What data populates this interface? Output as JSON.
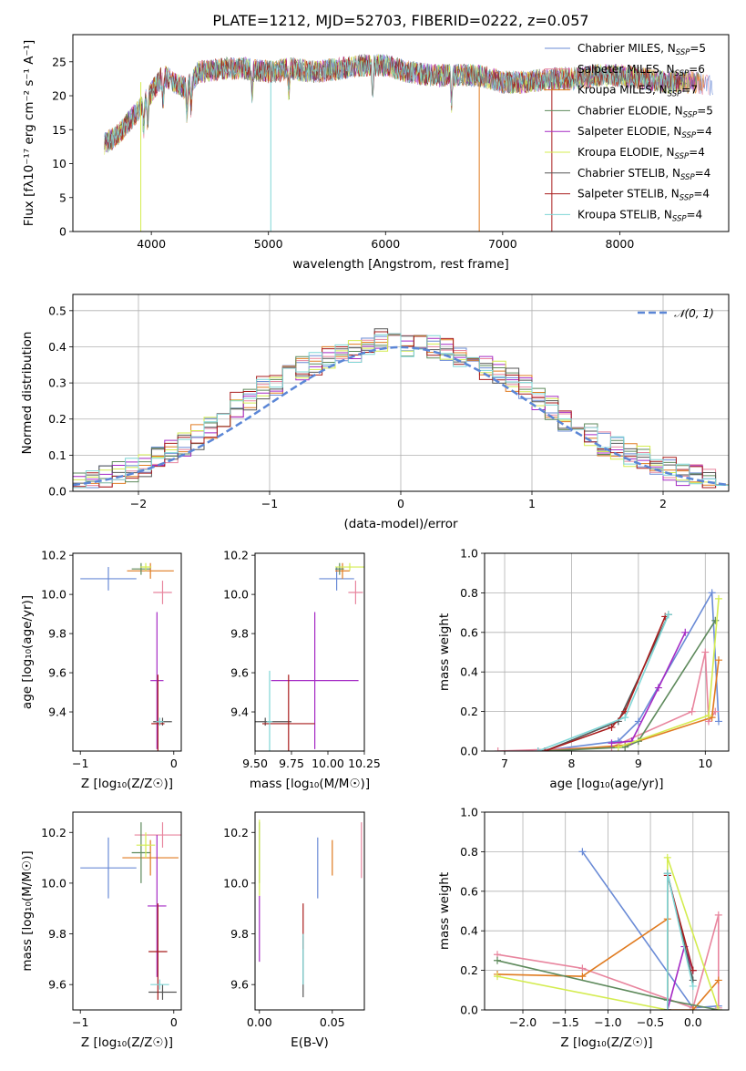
{
  "title": "PLATE=1212, MJD=52703, FIBERID=0222, z=0.057",
  "colors": {
    "Chabrier MILES": "#6a8bd6",
    "Salpeter MILES": "#e8859e",
    "Kroupa MILES": "#e07b20",
    "Chabrier ELODIE": "#5e8a5c",
    "Salpeter ELODIE": "#a52ac4",
    "Kroupa ELODIE": "#d4ec50",
    "Chabrier STELIB": "#555555",
    "Salpeter STELIB": "#a81c1c",
    "Kroupa STELIB": "#7fd6d6"
  },
  "chart_data": [
    {
      "id": "spectrum",
      "type": "line",
      "title": "PLATE=1212, MJD=52703, FIBERID=0222, z=0.057",
      "xlabel": "wavelength [Angstrom, rest frame]",
      "ylabel": "Flux [fλ10⁻¹⁷ erg cm⁻² s⁻¹ A⁻¹]",
      "xlim": [
        3330,
        8930
      ],
      "ylim": [
        0,
        29
      ],
      "xticks": [
        "4000",
        "5000",
        "6000",
        "7000",
        "8000"
      ],
      "yticks": [
        "0",
        "5",
        "10",
        "15",
        "20",
        "25"
      ],
      "legend_position": "top-right",
      "grid": false,
      "continuum": {
        "x": [
          3600,
          3700,
          3800,
          3900,
          4000,
          4100,
          4200,
          4300,
          4400,
          4600,
          4800,
          5000,
          5200,
          5400,
          5600,
          5800,
          6000,
          6200,
          6400,
          6600,
          6800,
          7000,
          7200,
          7400,
          7600,
          7800,
          8000,
          8200,
          8400,
          8600,
          8800
        ],
        "y": [
          13,
          14,
          16,
          18,
          20.5,
          23,
          22,
          21,
          23.5,
          24,
          24,
          23.5,
          24,
          23.5,
          24,
          24.5,
          24.5,
          23.5,
          23,
          23,
          23,
          22,
          22,
          22.5,
          22.5,
          23,
          23,
          22.5,
          22,
          22,
          21.5
        ]
      },
      "series": [
        {
          "name": "Chabrier MILES",
          "label": "Chabrier MILES, N",
          "sub": "SSP",
          "count": "=5"
        },
        {
          "name": "Salpeter MILES",
          "label": "Salpeter MILES, N",
          "sub": "SSP",
          "count": "=6"
        },
        {
          "name": "Kroupa MILES",
          "label": "Kroupa MILES, N",
          "sub": "SSP",
          "count": "=7"
        },
        {
          "name": "Chabrier ELODIE",
          "label": "Chabrier ELODIE, N",
          "sub": "SSP",
          "count": "=5"
        },
        {
          "name": "Salpeter ELODIE",
          "label": "Salpeter ELODIE, N",
          "sub": "SSP",
          "count": "=4"
        },
        {
          "name": "Kroupa ELODIE",
          "label": "Kroupa ELODIE, N",
          "sub": "SSP",
          "count": "=4"
        },
        {
          "name": "Chabrier STELIB",
          "label": "Chabrier STELIB, N",
          "sub": "SSP",
          "count": "=4"
        },
        {
          "name": "Salpeter STELIB",
          "label": "Salpeter STELIB, N",
          "sub": "SSP",
          "count": "=4"
        },
        {
          "name": "Kroupa STELIB",
          "label": "Kroupa STELIB, N",
          "sub": "SSP",
          "count": "=4"
        }
      ]
    },
    {
      "id": "residuals",
      "type": "bar",
      "xlabel": "(data-model)/error",
      "ylabel": "Normed distribution",
      "xlim": [
        -2.5,
        2.5
      ],
      "ylim": [
        0,
        0.545
      ],
      "xticks": [
        "−2",
        "−1",
        "0",
        "1",
        "2"
      ],
      "yticks": [
        "0.0",
        "0.1",
        "0.2",
        "0.3",
        "0.4",
        "0.5"
      ],
      "grid": true,
      "legend": "𝒩(0, 1)",
      "legend_position": "top-right",
      "bin_width": 0.1,
      "base_histogram_x": [
        -2.45,
        -2.35,
        -2.25,
        -2.15,
        -2.05,
        -1.95,
        -1.85,
        -1.75,
        -1.65,
        -1.55,
        -1.45,
        -1.35,
        -1.25,
        -1.15,
        -1.05,
        -0.95,
        -0.85,
        -0.75,
        -0.65,
        -0.55,
        -0.45,
        -0.35,
        -0.25,
        -0.15,
        -0.05,
        0.05,
        0.15,
        0.25,
        0.35,
        0.45,
        0.55,
        0.65,
        0.75,
        0.85,
        0.95,
        1.05,
        1.15,
        1.25,
        1.35,
        1.45,
        1.55,
        1.65,
        1.75,
        1.85,
        1.95,
        2.05,
        2.15,
        2.25,
        2.35,
        2.45
      ],
      "base_histogram_y": [
        0.02,
        0.03,
        0.04,
        0.05,
        0.06,
        0.07,
        0.09,
        0.11,
        0.13,
        0.15,
        0.17,
        0.2,
        0.24,
        0.26,
        0.29,
        0.3,
        0.32,
        0.34,
        0.35,
        0.37,
        0.38,
        0.39,
        0.4,
        0.42,
        0.41,
        0.4,
        0.41,
        0.4,
        0.39,
        0.38,
        0.36,
        0.34,
        0.33,
        0.31,
        0.29,
        0.26,
        0.23,
        0.2,
        0.18,
        0.16,
        0.13,
        0.12,
        0.1,
        0.09,
        0.07,
        0.06,
        0.05,
        0.04,
        0.03,
        0.03
      ]
    },
    {
      "id": "age-vs-Z",
      "type": "scatter",
      "xlabel": "Z [log₁₀(Z/Z☉)]",
      "ylabel": "age  [log₁₀(age/yr)]",
      "xlim": [
        -1.08,
        0.08
      ],
      "ylim": [
        9.2,
        10.21
      ],
      "xticks": [
        "−1",
        "0"
      ],
      "yticks": [
        "9.4",
        "9.6",
        "9.8",
        "10.0",
        "10.2"
      ],
      "points": [
        {
          "series": "Chabrier MILES",
          "x": -0.7,
          "y": 10.08,
          "xerr": 0.3,
          "yerr": 0.06
        },
        {
          "series": "Salpeter MILES",
          "x": -0.12,
          "y": 10.01,
          "xerr": 0.1,
          "yerr": 0.06
        },
        {
          "series": "Kroupa MILES",
          "x": -0.25,
          "y": 10.12,
          "xerr": 0.25,
          "yerr": 0.04
        },
        {
          "series": "Chabrier ELODIE",
          "x": -0.35,
          "y": 10.13,
          "xerr": 0.1,
          "yerr": 0.03
        },
        {
          "series": "Salpeter ELODIE",
          "x": -0.18,
          "y": 9.56,
          "xerr": 0.07,
          "yerr": 0.35
        },
        {
          "series": "Kroupa ELODIE",
          "x": -0.3,
          "y": 10.14,
          "xerr": 0.06,
          "yerr": 0.02
        },
        {
          "series": "Chabrier STELIB",
          "x": -0.12,
          "y": 9.35,
          "xerr": 0.1,
          "yerr": 0.02
        },
        {
          "series": "Salpeter STELIB",
          "x": -0.17,
          "y": 9.34,
          "xerr": 0.07,
          "yerr": 0.25
        },
        {
          "series": "Kroupa STELIB",
          "x": -0.15,
          "y": 9.35,
          "xerr": 0.04,
          "yerr": 0.02
        }
      ]
    },
    {
      "id": "age-vs-mass",
      "type": "scatter",
      "xlabel": "mass [log₁₀(M/M☉)]",
      "xlim": [
        9.5,
        10.25
      ],
      "ylim": [
        9.2,
        10.21
      ],
      "xticks": [
        "9.50",
        "9.75",
        "10.00",
        "10.25"
      ],
      "yticks": [
        "9.4",
        "9.6",
        "9.8",
        "10.0",
        "10.2"
      ],
      "points": [
        {
          "series": "Chabrier MILES",
          "x": 10.06,
          "y": 10.08,
          "xerr": 0.12,
          "yerr": 0.06
        },
        {
          "series": "Salpeter MILES",
          "x": 10.19,
          "y": 10.01,
          "xerr": 0.05,
          "yerr": 0.06
        },
        {
          "series": "Kroupa MILES",
          "x": 10.1,
          "y": 10.12,
          "xerr": 0.05,
          "yerr": 0.04
        },
        {
          "series": "Chabrier ELODIE",
          "x": 10.08,
          "y": 10.13,
          "xerr": 0.03,
          "yerr": 0.03
        },
        {
          "series": "Salpeter ELODIE",
          "x": 9.91,
          "y": 9.56,
          "xerr": 0.3,
          "yerr": 0.35
        },
        {
          "series": "Kroupa ELODIE",
          "x": 10.15,
          "y": 10.14,
          "xerr": 0.1,
          "yerr": 0.02
        },
        {
          "series": "Chabrier STELIB",
          "x": 9.57,
          "y": 9.35,
          "xerr": 0.18,
          "yerr": 0.02
        },
        {
          "series": "Salpeter STELIB",
          "x": 9.73,
          "y": 9.34,
          "xerr": 0.18,
          "yerr": 0.25
        },
        {
          "series": "Kroupa STELIB",
          "x": 9.6,
          "y": 9.35,
          "xerr": 0.02,
          "yerr": 0.26
        }
      ]
    },
    {
      "id": "weight-vs-age",
      "type": "line",
      "xlabel": "age  [log₁₀(age/yr)]",
      "ylabel": "mass weight",
      "xlim": [
        6.7,
        10.35
      ],
      "ylim": [
        0,
        1
      ],
      "xticks": [
        "7",
        "8",
        "9",
        "10"
      ],
      "yticks": [
        "0.0",
        "0.2",
        "0.4",
        "0.6",
        "0.8",
        "1.0"
      ],
      "grid": true,
      "series": [
        {
          "name": "Chabrier MILES",
          "x": [
            7.5,
            8.7,
            9.0,
            10.1,
            10.2
          ],
          "y": [
            0.0,
            0.05,
            0.15,
            0.8,
            0.15
          ]
        },
        {
          "name": "Salpeter MILES",
          "x": [
            6.9,
            8.6,
            9.8,
            10.0,
            10.05,
            10.15
          ],
          "y": [
            0.0,
            0.02,
            0.2,
            0.5,
            0.15,
            0.2
          ]
        },
        {
          "name": "Kroupa MILES",
          "x": [
            7.6,
            8.8,
            9.0,
            10.1,
            10.2
          ],
          "y": [
            0.0,
            0.03,
            0.05,
            0.17,
            0.46
          ]
        },
        {
          "name": "Chabrier ELODIE",
          "x": [
            7.6,
            8.8,
            9.0,
            10.15
          ],
          "y": [
            0.0,
            0.02,
            0.05,
            0.66
          ]
        },
        {
          "name": "Salpeter ELODIE",
          "x": [
            8.6,
            8.9,
            9.3,
            9.7
          ],
          "y": [
            0.04,
            0.05,
            0.32,
            0.6
          ]
        },
        {
          "name": "Kroupa ELODIE",
          "x": [
            8.7,
            10.05,
            10.2
          ],
          "y": [
            0.02,
            0.18,
            0.77
          ]
        },
        {
          "name": "Chabrier STELIB",
          "x": [
            7.6,
            8.7,
            9.45
          ],
          "y": [
            0.0,
            0.15,
            0.69
          ]
        },
        {
          "name": "Salpeter STELIB",
          "x": [
            7.6,
            8.6,
            8.8,
            9.4
          ],
          "y": [
            0.0,
            0.12,
            0.2,
            0.68
          ]
        },
        {
          "name": "Kroupa STELIB",
          "x": [
            7.5,
            8.8,
            9.45
          ],
          "y": [
            0.0,
            0.17,
            0.69
          ]
        }
      ]
    },
    {
      "id": "mass-vs-Z",
      "type": "scatter",
      "xlabel": "Z [log₁₀(Z/Z☉)]",
      "ylabel": "mass [log₁₀(M/M☉)]",
      "xlim": [
        -1.08,
        0.08
      ],
      "ylim": [
        9.5,
        10.28
      ],
      "xticks": [
        "−1",
        "0"
      ],
      "yticks": [
        "9.6",
        "9.8",
        "10.0",
        "10.2"
      ],
      "points": [
        {
          "series": "Chabrier MILES",
          "x": -0.7,
          "y": 10.06,
          "xerr": 0.3,
          "yerr": 0.12
        },
        {
          "series": "Salpeter MILES",
          "x": -0.12,
          "y": 10.19,
          "xerr": 0.3,
          "yerr": 0.05
        },
        {
          "series": "Kroupa MILES",
          "x": -0.25,
          "y": 10.1,
          "xerr": 0.3,
          "yerr": 0.07
        },
        {
          "series": "Chabrier ELODIE",
          "x": -0.35,
          "y": 10.12,
          "xerr": 0.1,
          "yerr": 0.12
        },
        {
          "series": "Salpeter ELODIE",
          "x": -0.18,
          "y": 9.91,
          "xerr": 0.1,
          "yerr": 0.28
        },
        {
          "series": "Kroupa ELODIE",
          "x": -0.3,
          "y": 10.15,
          "xerr": 0.1,
          "yerr": 0.05
        },
        {
          "series": "Chabrier STELIB",
          "x": -0.12,
          "y": 9.57,
          "xerr": 0.15,
          "yerr": 0.03
        },
        {
          "series": "Salpeter STELIB",
          "x": -0.17,
          "y": 9.73,
          "xerr": 0.1,
          "yerr": 0.19
        },
        {
          "series": "Kroupa STELIB",
          "x": -0.15,
          "y": 9.6,
          "xerr": 0.1,
          "yerr": 0.02
        }
      ]
    },
    {
      "id": "mass-vs-ebv",
      "type": "scatter",
      "xlabel": "E(B-V)",
      "xlim": [
        -0.003,
        0.072
      ],
      "ylim": [
        9.5,
        10.28
      ],
      "xticks": [
        "0.00",
        "0.05"
      ],
      "yticks": [
        "9.6",
        "9.8",
        "10.0",
        "10.2"
      ],
      "points": [
        {
          "series": "Chabrier MILES",
          "x": 0.04,
          "y": 10.06,
          "xerr": 0,
          "yerr": 0.12
        },
        {
          "series": "Salpeter MILES",
          "x": 0.07,
          "y": 10.13,
          "xerr": 0,
          "yerr": 0.11
        },
        {
          "series": "Kroupa MILES",
          "x": 0.05,
          "y": 10.1,
          "xerr": 0,
          "yerr": 0.07
        },
        {
          "series": "Chabrier ELODIE",
          "x": 0.0,
          "y": 10.12,
          "xerr": 0,
          "yerr": 0.12
        },
        {
          "series": "Salpeter ELODIE",
          "x": 0.0,
          "y": 9.82,
          "xerr": 0,
          "yerr": 0.13
        },
        {
          "series": "Kroupa ELODIE",
          "x": 0.0,
          "y": 10.1,
          "xerr": 0,
          "yerr": 0.15
        },
        {
          "series": "Chabrier STELIB",
          "x": 0.03,
          "y": 9.67,
          "xerr": 0,
          "yerr": 0.12
        },
        {
          "series": "Salpeter STELIB",
          "x": 0.03,
          "y": 9.83,
          "xerr": 0,
          "yerr": 0.09
        },
        {
          "series": "Kroupa STELIB",
          "x": 0.03,
          "y": 9.7,
          "xerr": 0,
          "yerr": 0.1
        }
      ]
    },
    {
      "id": "weight-vs-Z",
      "type": "line",
      "xlabel": "Z [log₁₀(Z/Z☉)]",
      "ylabel": "mass weight",
      "xlim": [
        -2.45,
        0.42
      ],
      "ylim": [
        0,
        1
      ],
      "xticks": [
        "−2.0",
        "−1.5",
        "−1.0",
        "−0.5",
        "0.0"
      ],
      "yticks": [
        "0.0",
        "0.2",
        "0.4",
        "0.6",
        "0.8",
        "1.0"
      ],
      "grid": true,
      "series": [
        {
          "name": "Chabrier MILES",
          "x": [
            -1.3,
            0.0,
            0.3
          ],
          "y": [
            0.8,
            0.01,
            0.02
          ]
        },
        {
          "name": "Salpeter MILES",
          "x": [
            -2.3,
            -1.3,
            0.0,
            0.3,
            0.3
          ],
          "y": [
            0.28,
            0.21,
            0.01,
            0.48,
            0.01
          ]
        },
        {
          "name": "Kroupa MILES",
          "x": [
            -2.3,
            -1.3,
            -0.3,
            -0.3,
            0.0,
            0.3
          ],
          "y": [
            0.18,
            0.17,
            0.46,
            0.0,
            0.0,
            0.15
          ]
        },
        {
          "name": "Chabrier ELODIE",
          "x": [
            -2.3,
            -0.3,
            0.3
          ],
          "y": [
            0.25,
            0.05,
            0.0
          ]
        },
        {
          "name": "Salpeter ELODIE",
          "x": [
            -0.3,
            -0.1,
            0.0
          ],
          "y": [
            0.0,
            0.32,
            0.2
          ]
        },
        {
          "name": "Kroupa ELODIE",
          "x": [
            -2.3,
            -0.3,
            -0.3,
            0.3
          ],
          "y": [
            0.17,
            0.0,
            0.77,
            0.0
          ]
        },
        {
          "name": "Chabrier STELIB",
          "x": [
            -0.3,
            -0.3,
            0.0
          ],
          "y": [
            0.0,
            0.69,
            0.15
          ]
        },
        {
          "name": "Salpeter STELIB",
          "x": [
            -0.3,
            -0.3,
            0.0
          ],
          "y": [
            0.0,
            0.68,
            0.2
          ]
        },
        {
          "name": "Kroupa STELIB",
          "x": [
            -0.3,
            -0.3,
            0.0
          ],
          "y": [
            0.0,
            0.69,
            0.12
          ]
        }
      ]
    }
  ]
}
